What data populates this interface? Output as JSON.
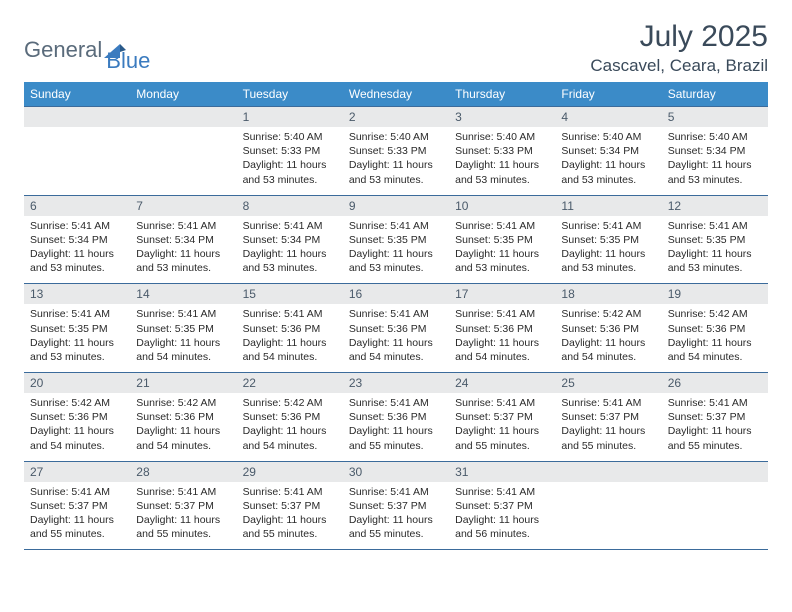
{
  "logo": {
    "text1": "General",
    "text2": "Blue"
  },
  "title": "July 2025",
  "location": "Cascavel, Ceara, Brazil",
  "colors": {
    "header_bg": "#3b8bc8",
    "header_text": "#ffffff",
    "daynum_bg": "#e8e9ea",
    "border": "#3b6b9b",
    "title_text": "#3a4a5a",
    "logo_gray": "#5a6b7b",
    "logo_blue": "#3b7bbf",
    "body_text": "#2a2a2a"
  },
  "day_names": [
    "Sunday",
    "Monday",
    "Tuesday",
    "Wednesday",
    "Thursday",
    "Friday",
    "Saturday"
  ],
  "weeks": [
    [
      {
        "empty": true
      },
      {
        "empty": true
      },
      {
        "day": "1",
        "sunrise": "Sunrise: 5:40 AM",
        "sunset": "Sunset: 5:33 PM",
        "daylight": "Daylight: 11 hours and 53 minutes."
      },
      {
        "day": "2",
        "sunrise": "Sunrise: 5:40 AM",
        "sunset": "Sunset: 5:33 PM",
        "daylight": "Daylight: 11 hours and 53 minutes."
      },
      {
        "day": "3",
        "sunrise": "Sunrise: 5:40 AM",
        "sunset": "Sunset: 5:33 PM",
        "daylight": "Daylight: 11 hours and 53 minutes."
      },
      {
        "day": "4",
        "sunrise": "Sunrise: 5:40 AM",
        "sunset": "Sunset: 5:34 PM",
        "daylight": "Daylight: 11 hours and 53 minutes."
      },
      {
        "day": "5",
        "sunrise": "Sunrise: 5:40 AM",
        "sunset": "Sunset: 5:34 PM",
        "daylight": "Daylight: 11 hours and 53 minutes."
      }
    ],
    [
      {
        "day": "6",
        "sunrise": "Sunrise: 5:41 AM",
        "sunset": "Sunset: 5:34 PM",
        "daylight": "Daylight: 11 hours and 53 minutes."
      },
      {
        "day": "7",
        "sunrise": "Sunrise: 5:41 AM",
        "sunset": "Sunset: 5:34 PM",
        "daylight": "Daylight: 11 hours and 53 minutes."
      },
      {
        "day": "8",
        "sunrise": "Sunrise: 5:41 AM",
        "sunset": "Sunset: 5:34 PM",
        "daylight": "Daylight: 11 hours and 53 minutes."
      },
      {
        "day": "9",
        "sunrise": "Sunrise: 5:41 AM",
        "sunset": "Sunset: 5:35 PM",
        "daylight": "Daylight: 11 hours and 53 minutes."
      },
      {
        "day": "10",
        "sunrise": "Sunrise: 5:41 AM",
        "sunset": "Sunset: 5:35 PM",
        "daylight": "Daylight: 11 hours and 53 minutes."
      },
      {
        "day": "11",
        "sunrise": "Sunrise: 5:41 AM",
        "sunset": "Sunset: 5:35 PM",
        "daylight": "Daylight: 11 hours and 53 minutes."
      },
      {
        "day": "12",
        "sunrise": "Sunrise: 5:41 AM",
        "sunset": "Sunset: 5:35 PM",
        "daylight": "Daylight: 11 hours and 53 minutes."
      }
    ],
    [
      {
        "day": "13",
        "sunrise": "Sunrise: 5:41 AM",
        "sunset": "Sunset: 5:35 PM",
        "daylight": "Daylight: 11 hours and 53 minutes."
      },
      {
        "day": "14",
        "sunrise": "Sunrise: 5:41 AM",
        "sunset": "Sunset: 5:35 PM",
        "daylight": "Daylight: 11 hours and 54 minutes."
      },
      {
        "day": "15",
        "sunrise": "Sunrise: 5:41 AM",
        "sunset": "Sunset: 5:36 PM",
        "daylight": "Daylight: 11 hours and 54 minutes."
      },
      {
        "day": "16",
        "sunrise": "Sunrise: 5:41 AM",
        "sunset": "Sunset: 5:36 PM",
        "daylight": "Daylight: 11 hours and 54 minutes."
      },
      {
        "day": "17",
        "sunrise": "Sunrise: 5:41 AM",
        "sunset": "Sunset: 5:36 PM",
        "daylight": "Daylight: 11 hours and 54 minutes."
      },
      {
        "day": "18",
        "sunrise": "Sunrise: 5:42 AM",
        "sunset": "Sunset: 5:36 PM",
        "daylight": "Daylight: 11 hours and 54 minutes."
      },
      {
        "day": "19",
        "sunrise": "Sunrise: 5:42 AM",
        "sunset": "Sunset: 5:36 PM",
        "daylight": "Daylight: 11 hours and 54 minutes."
      }
    ],
    [
      {
        "day": "20",
        "sunrise": "Sunrise: 5:42 AM",
        "sunset": "Sunset: 5:36 PM",
        "daylight": "Daylight: 11 hours and 54 minutes."
      },
      {
        "day": "21",
        "sunrise": "Sunrise: 5:42 AM",
        "sunset": "Sunset: 5:36 PM",
        "daylight": "Daylight: 11 hours and 54 minutes."
      },
      {
        "day": "22",
        "sunrise": "Sunrise: 5:42 AM",
        "sunset": "Sunset: 5:36 PM",
        "daylight": "Daylight: 11 hours and 54 minutes."
      },
      {
        "day": "23",
        "sunrise": "Sunrise: 5:41 AM",
        "sunset": "Sunset: 5:36 PM",
        "daylight": "Daylight: 11 hours and 55 minutes."
      },
      {
        "day": "24",
        "sunrise": "Sunrise: 5:41 AM",
        "sunset": "Sunset: 5:37 PM",
        "daylight": "Daylight: 11 hours and 55 minutes."
      },
      {
        "day": "25",
        "sunrise": "Sunrise: 5:41 AM",
        "sunset": "Sunset: 5:37 PM",
        "daylight": "Daylight: 11 hours and 55 minutes."
      },
      {
        "day": "26",
        "sunrise": "Sunrise: 5:41 AM",
        "sunset": "Sunset: 5:37 PM",
        "daylight": "Daylight: 11 hours and 55 minutes."
      }
    ],
    [
      {
        "day": "27",
        "sunrise": "Sunrise: 5:41 AM",
        "sunset": "Sunset: 5:37 PM",
        "daylight": "Daylight: 11 hours and 55 minutes."
      },
      {
        "day": "28",
        "sunrise": "Sunrise: 5:41 AM",
        "sunset": "Sunset: 5:37 PM",
        "daylight": "Daylight: 11 hours and 55 minutes."
      },
      {
        "day": "29",
        "sunrise": "Sunrise: 5:41 AM",
        "sunset": "Sunset: 5:37 PM",
        "daylight": "Daylight: 11 hours and 55 minutes."
      },
      {
        "day": "30",
        "sunrise": "Sunrise: 5:41 AM",
        "sunset": "Sunset: 5:37 PM",
        "daylight": "Daylight: 11 hours and 55 minutes."
      },
      {
        "day": "31",
        "sunrise": "Sunrise: 5:41 AM",
        "sunset": "Sunset: 5:37 PM",
        "daylight": "Daylight: 11 hours and 56 minutes."
      },
      {
        "empty": true
      },
      {
        "empty": true
      }
    ]
  ]
}
